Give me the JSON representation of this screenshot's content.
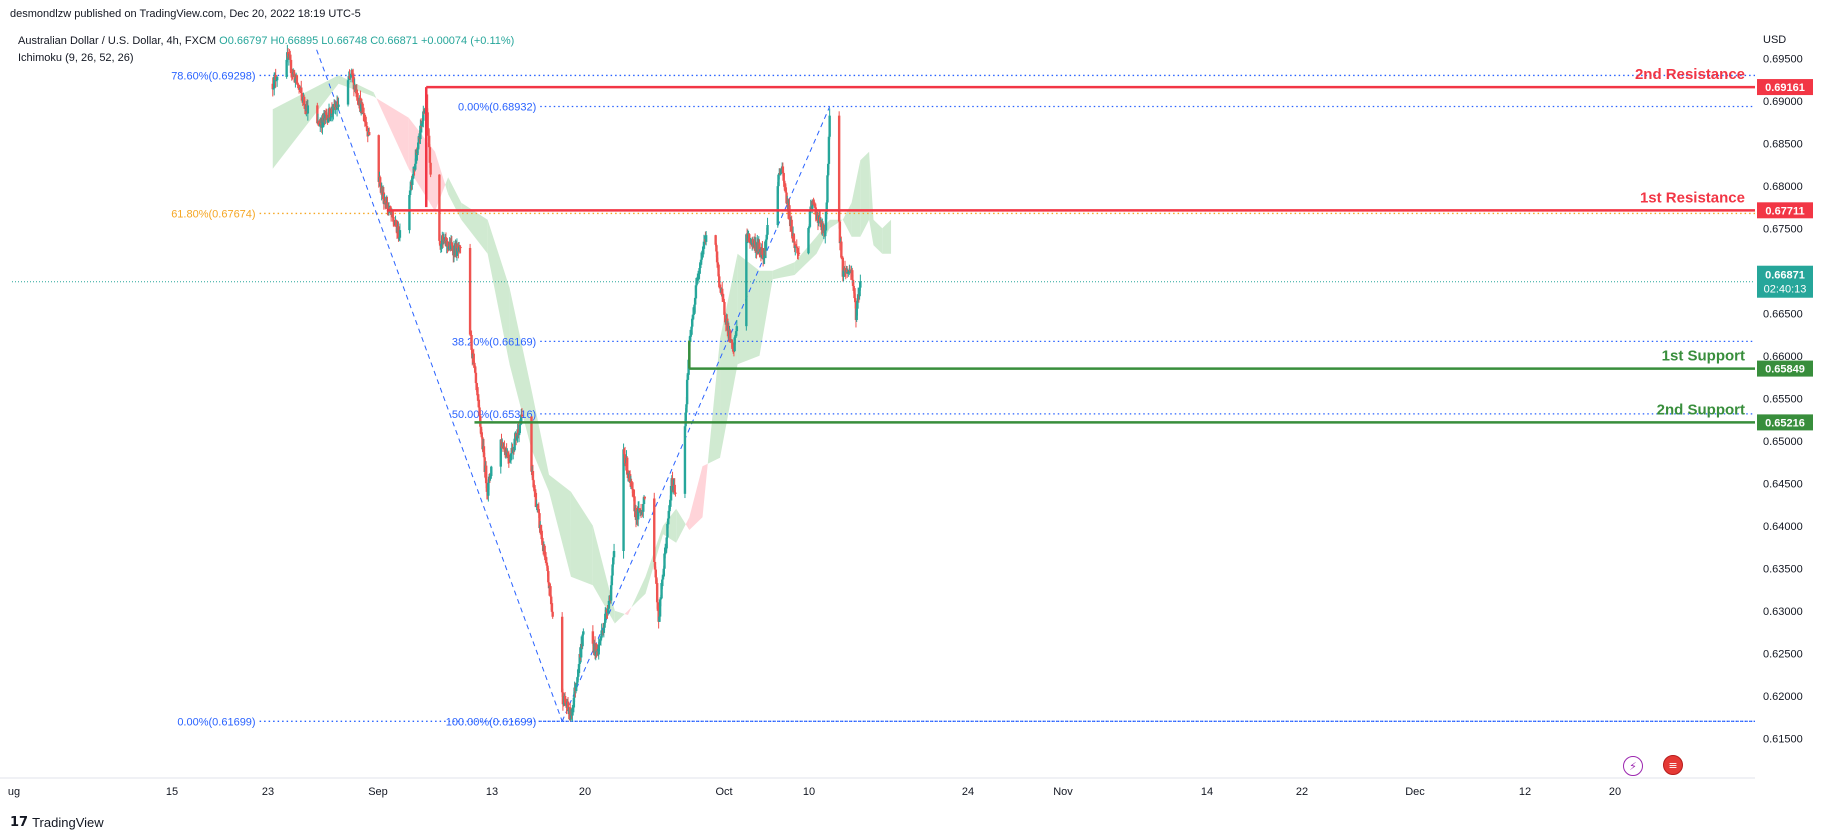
{
  "header": {
    "publisher": "desmondlzw published on TradingView.com, Dec 20, 2022 18:19 UTC-5",
    "symbol": "Australian Dollar / U.S. Dollar, 4h, FXCM",
    "ohlc": "O0.66797 H0.66895 L0.66748 C0.66871 +0.00074 (+0.11%)",
    "indicator": "Ichimoku (9, 26, 52, 26)"
  },
  "footer": {
    "brand": "TradingView"
  },
  "colors": {
    "up": "#26a69a",
    "down": "#ef5350",
    "resistance": "#f23645",
    "support": "#388e3c",
    "fib_blue": "#2962ff",
    "fib_orange": "#f5a623",
    "cloud_bull": "#c8e6c9",
    "cloud_bear": "#ffcdd2",
    "text": "#131722",
    "grid_axis": "#787b86"
  },
  "chart_data": {
    "type": "candlestick",
    "instrument": "Australian Dollar / U.S. Dollar",
    "timeframe": "4h",
    "exchange": "FXCM",
    "currency": "USD",
    "ylim": [
      0.6115,
      0.6995
    ],
    "y_ticks": [
      "0.69500",
      "0.69000",
      "0.68500",
      "0.68000",
      "0.67500",
      "0.67000",
      "0.66500",
      "0.66000",
      "0.65500",
      "0.65000",
      "0.64500",
      "0.64000",
      "0.63500",
      "0.63000",
      "0.62500",
      "0.62000",
      "0.61500"
    ],
    "x_ticks": [
      "ug",
      "15",
      "23",
      "Sep",
      "13",
      "20",
      "Oct",
      "10",
      "24",
      "Nov",
      "14",
      "22",
      "Dec",
      "12",
      "20"
    ],
    "price_path": [
      [
        "Aug 08",
        0.692
      ],
      [
        "Aug 11",
        0.6955
      ],
      [
        "Aug 15",
        0.69
      ],
      [
        "Aug 18",
        0.687
      ],
      [
        "Aug 23",
        0.6895
      ],
      [
        "Aug 26",
        0.693
      ],
      [
        "Aug 30",
        0.686
      ],
      [
        "Sep 02",
        0.679
      ],
      [
        "Sep 06",
        0.674
      ],
      [
        "Sep 08",
        0.679
      ],
      [
        "Sep 12",
        0.69
      ],
      [
        "Sep 14",
        0.674
      ],
      [
        "Sep 17",
        0.673
      ],
      [
        "Sep 20",
        0.672
      ],
      [
        "Sep 23",
        0.658
      ],
      [
        "Sep 26",
        0.644
      ],
      [
        "Sep 28",
        0.651
      ],
      [
        "Oct 01",
        0.648
      ],
      [
        "Oct 04",
        0.653
      ],
      [
        "Oct 07",
        0.643
      ],
      [
        "Oct 10",
        0.633
      ],
      [
        "Oct 13",
        0.62
      ],
      [
        "Oct 15",
        0.6175
      ],
      [
        "Oct 18",
        0.628
      ],
      [
        "Oct 21",
        0.625
      ],
      [
        "Oct 24",
        0.632
      ],
      [
        "Oct 27",
        0.649
      ],
      [
        "Oct 30",
        0.641
      ],
      [
        "Nov 02",
        0.644
      ],
      [
        "Nov 04",
        0.629
      ],
      [
        "Nov 07",
        0.645
      ],
      [
        "Nov 09",
        0.643
      ],
      [
        "Nov 11",
        0.661
      ],
      [
        "Nov 13",
        0.67
      ],
      [
        "Nov 16",
        0.677
      ],
      [
        "Nov 18",
        0.668
      ],
      [
        "Nov 21",
        0.66
      ],
      [
        "Nov 24",
        0.674
      ],
      [
        "Nov 28",
        0.672
      ],
      [
        "Nov 30",
        0.679
      ],
      [
        "Dec 02",
        0.682
      ],
      [
        "Dec 05",
        0.673
      ],
      [
        "Dec 07",
        0.671
      ],
      [
        "Dec 09",
        0.678
      ],
      [
        "Dec 12",
        0.674
      ],
      [
        "Dec 13",
        0.688
      ],
      [
        "Dec 14",
        0.686
      ],
      [
        "Dec 15",
        0.676
      ],
      [
        "Dec 16",
        0.67
      ],
      [
        "Dec 18",
        0.67
      ],
      [
        "Dec 19",
        0.665
      ],
      [
        "Dec 20",
        0.6687
      ]
    ],
    "ichimoku_cloud": [
      {
        "x": "Aug 08",
        "a": 0.689,
        "b": 0.682
      },
      {
        "x": "Aug 23",
        "a": 0.693,
        "b": 0.692
      },
      {
        "x": "Aug 31",
        "a": 0.691,
        "b": 0.6905
      },
      {
        "x": "Sep 08",
        "a": 0.682,
        "b": 0.688
      },
      {
        "x": "Sep 14",
        "a": 0.677,
        "b": 0.684
      },
      {
        "x": "Sep 17",
        "a": 0.681,
        "b": 0.679
      },
      {
        "x": "Sep 20",
        "a": 0.678,
        "b": 0.676
      },
      {
        "x": "Sep 26",
        "a": 0.676,
        "b": 0.672
      },
      {
        "x": "Oct 01",
        "a": 0.668,
        "b": 0.659
      },
      {
        "x": "Oct 06",
        "a": 0.656,
        "b": 0.649
      },
      {
        "x": "Oct 10",
        "a": 0.646,
        "b": 0.644
      },
      {
        "x": "Oct 15",
        "a": 0.644,
        "b": 0.634
      },
      {
        "x": "Oct 20",
        "a": 0.64,
        "b": 0.633
      },
      {
        "x": "Oct 25",
        "a": 0.63,
        "b": 0.6285
      },
      {
        "x": "Oct 28",
        "a": 0.6295,
        "b": 0.63
      },
      {
        "x": "Nov 01",
        "a": 0.634,
        "b": 0.632
      },
      {
        "x": "Nov 05",
        "a": 0.64,
        "b": 0.639
      },
      {
        "x": "Nov 08",
        "a": 0.642,
        "b": 0.638
      },
      {
        "x": "Nov 11",
        "a": 0.6395,
        "b": 0.641
      },
      {
        "x": "Nov 14",
        "a": 0.641,
        "b": 0.647
      },
      {
        "x": "Nov 18",
        "a": 0.662,
        "b": 0.648
      },
      {
        "x": "Nov 22",
        "a": 0.672,
        "b": 0.659
      },
      {
        "x": "Nov 27",
        "a": 0.67,
        "b": 0.66
      },
      {
        "x": "Nov 30",
        "a": 0.67,
        "b": 0.669
      },
      {
        "x": "Dec 05",
        "a": 0.671,
        "b": 0.6695
      },
      {
        "x": "Dec 10",
        "a": 0.674,
        "b": 0.672
      },
      {
        "x": "Dec 13",
        "a": 0.676,
        "b": 0.675
      },
      {
        "x": "Dec 16",
        "a": 0.676,
        "b": 0.676
      },
      {
        "x": "Dec 18",
        "a": 0.678,
        "b": 0.674
      },
      {
        "x": "Dec 20",
        "a": 0.683,
        "b": 0.674
      },
      {
        "x": "Dec 22",
        "a": 0.684,
        "b": 0.676
      },
      {
        "x": "Dec 23",
        "a": 0.676,
        "b": 0.673
      },
      {
        "x": "Dec 25",
        "a": 0.675,
        "b": 0.672
      },
      {
        "x": "Dec 27",
        "a": 0.676,
        "b": 0.672
      }
    ],
    "levels": [
      {
        "name": "2nd Resistance",
        "value": 0.69161,
        "label": "0.69161",
        "kind": "resistance",
        "from": "Sep 12"
      },
      {
        "name": "1st Resistance",
        "value": 0.67711,
        "label": "0.67711",
        "kind": "resistance",
        "from": "Sep 03"
      },
      {
        "name": "1st Support",
        "value": 0.65849,
        "label": "0.65849",
        "kind": "support",
        "from": "Nov 11"
      },
      {
        "name": "2nd Support",
        "value": 0.65216,
        "label": "0.65216",
        "kind": "support",
        "from": "Sep 23"
      }
    ],
    "fibonacci": [
      {
        "label": "78.60%(0.69298)",
        "value": 0.69298,
        "from": "Aug 05",
        "color": "blue"
      },
      {
        "label": "61.80%(0.67674)",
        "value": 0.67674,
        "from": "Aug 05",
        "color": "orange"
      },
      {
        "label": "0.00%(0.61699)",
        "value": 0.61699,
        "from": "Aug 05",
        "color": "blue"
      },
      {
        "label": "0.00%(0.68932)",
        "value": 0.68932,
        "from": "Oct 08",
        "color": "blue"
      },
      {
        "label": "38.20%(0.66169)",
        "value": 0.66169,
        "from": "Oct 08",
        "color": "blue"
      },
      {
        "label": "50.00%(0.65316)",
        "value": 0.65316,
        "from": "Oct 08",
        "color": "blue"
      },
      {
        "label": "100.00%(0.61699)",
        "value": 0.61699,
        "from": "Oct 08",
        "color": "blue"
      }
    ],
    "fib_trendlines": [
      {
        "from": [
          "Aug 18",
          0.696
        ],
        "to": [
          "Oct 13",
          0.617
        ]
      },
      {
        "from": [
          "Oct 13",
          0.617
        ],
        "to": [
          "Dec 13",
          0.6893
        ]
      }
    ],
    "current_price": {
      "value": 0.66871,
      "label": "0.66871",
      "countdown": "02:40:13"
    },
    "last_price_line": 0.66871
  }
}
